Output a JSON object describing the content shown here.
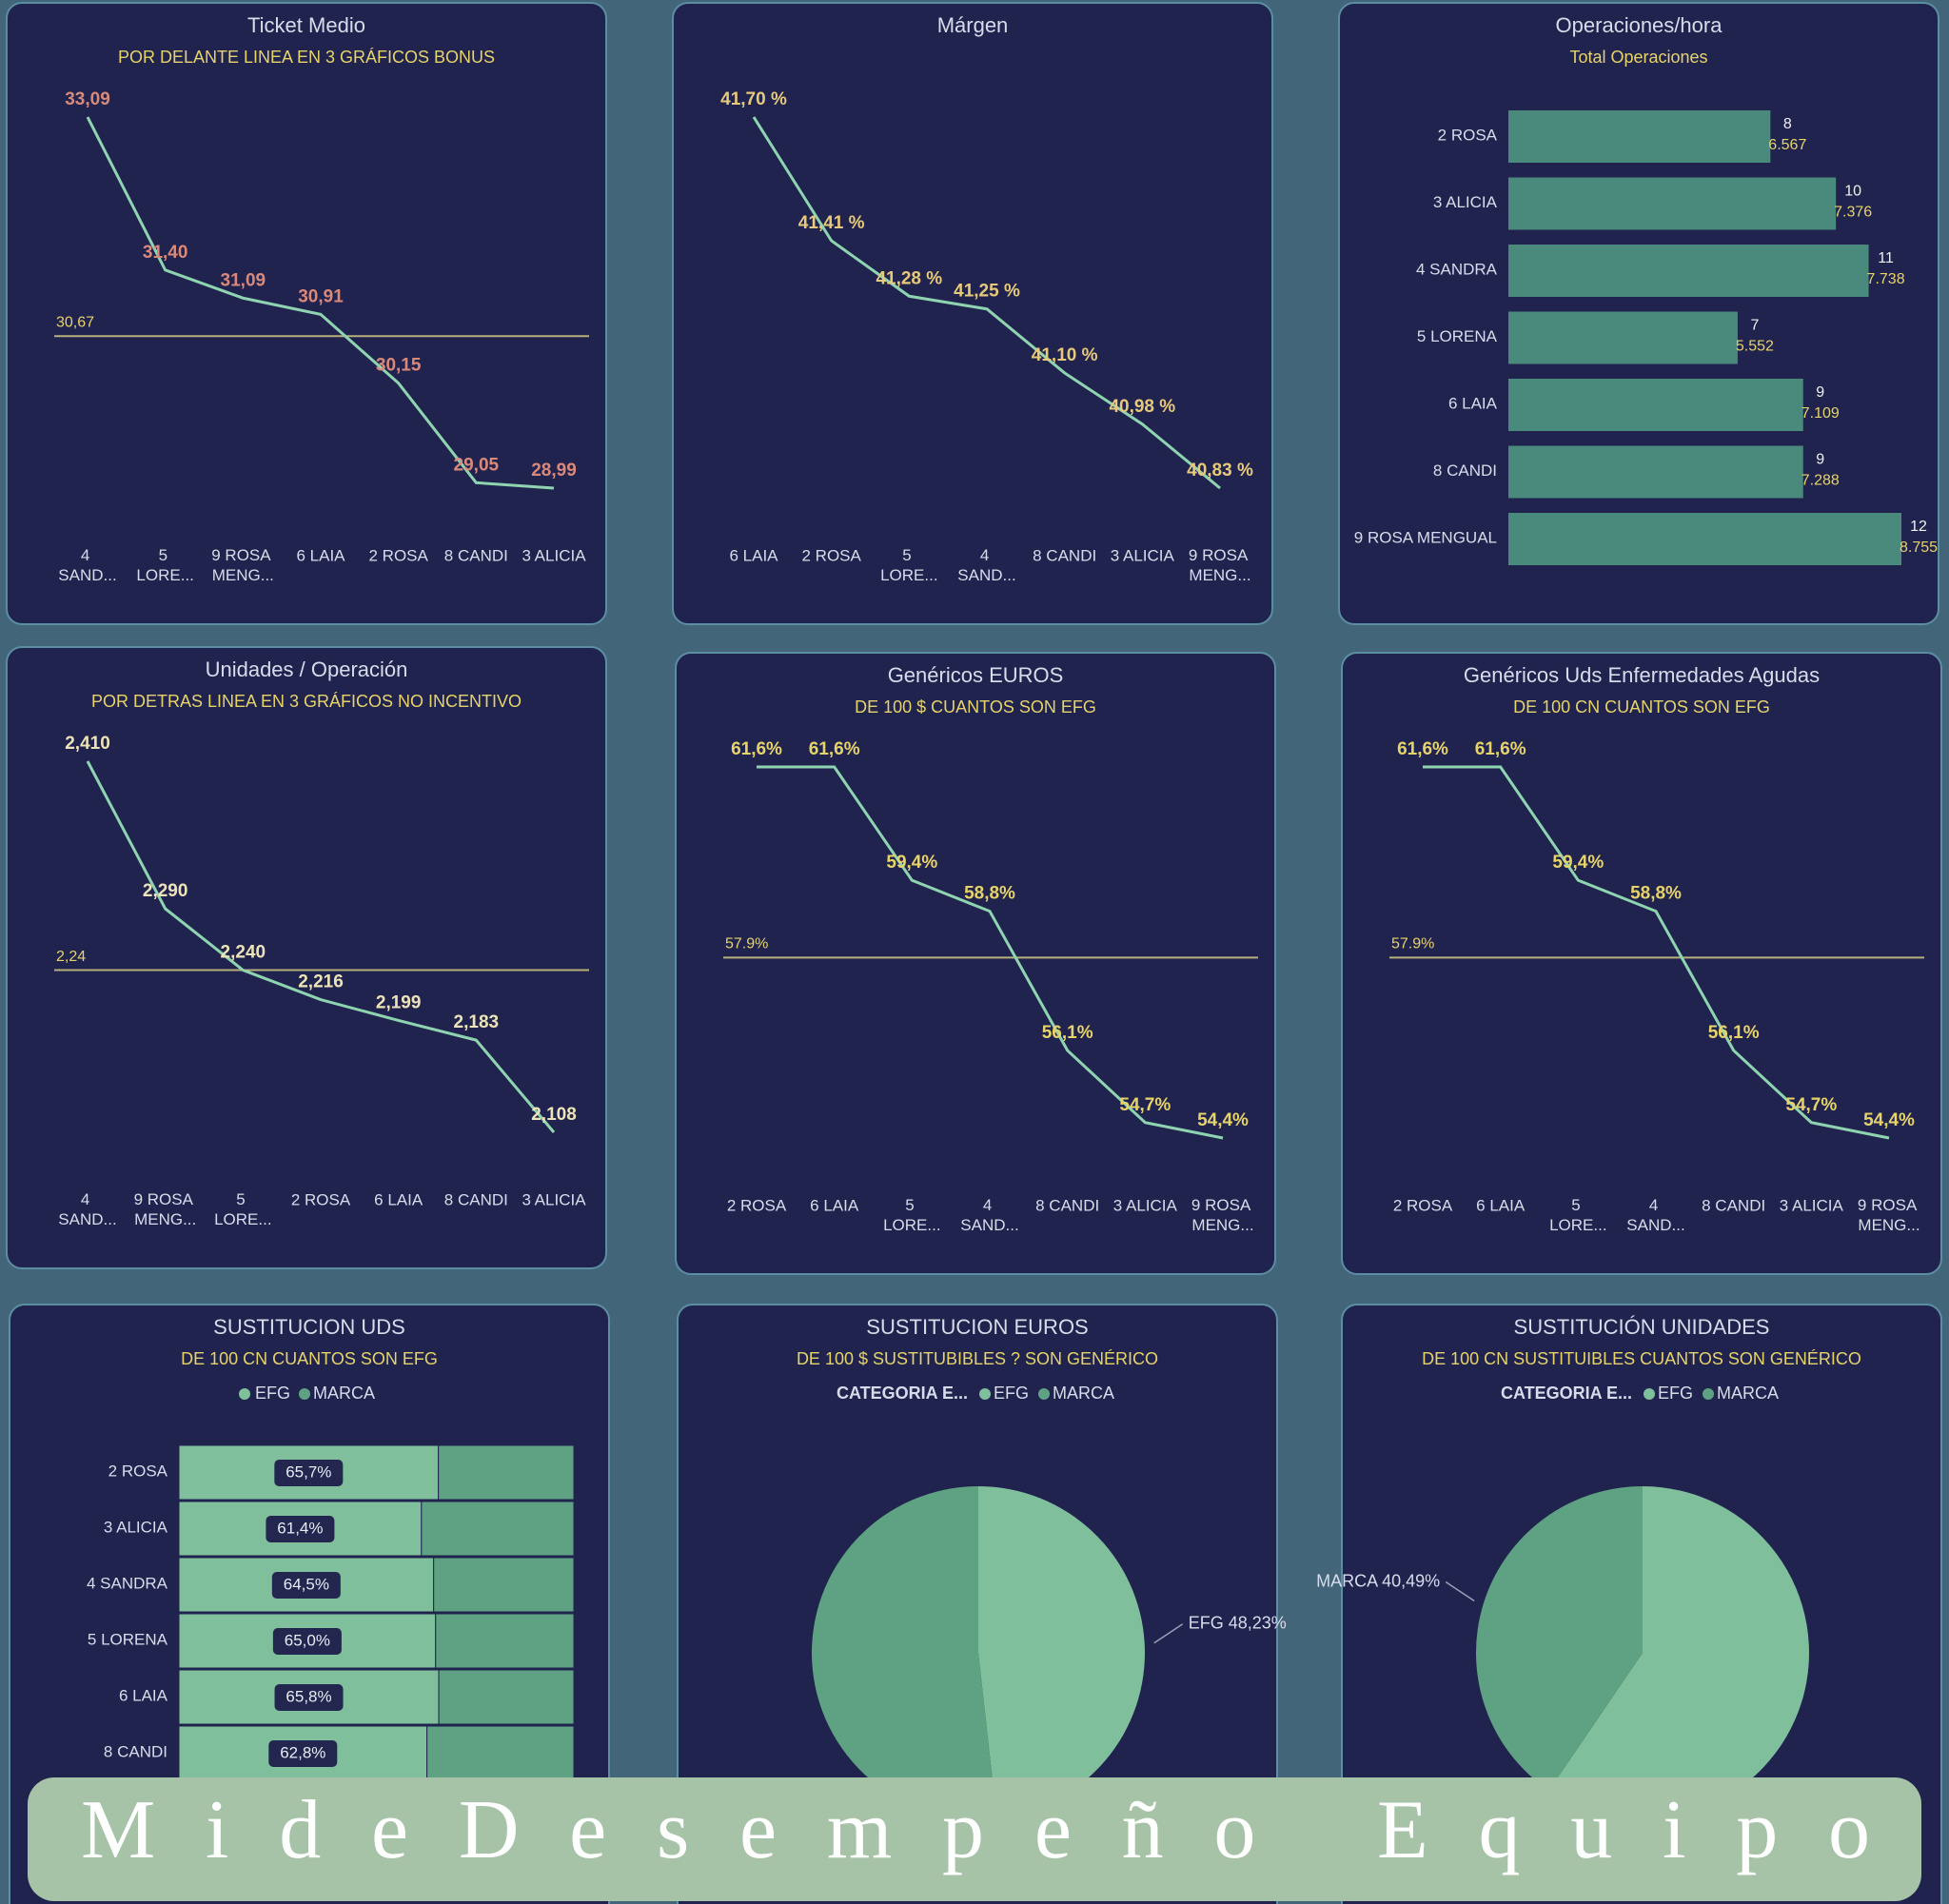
{
  "chart_data": [
    {
      "type": "line",
      "title": "Ticket Medio",
      "subtitle": "POR DELANTE LINEA EN 3 GRÁFICOS BONUS",
      "categories": [
        "4 SAND...",
        "5 LORE...",
        "9 ROSA MENG...",
        "6 LAIA",
        "2 ROSA",
        "8 CANDI",
        "3 ALICIA"
      ],
      "values": [
        33.09,
        31.4,
        31.09,
        30.91,
        30.15,
        29.05,
        28.99
      ],
      "value_labels": [
        "33,09",
        "31,40",
        "31,09",
        "30,91",
        "30,15",
        "29,05",
        "28,99"
      ],
      "reference": {
        "value": 30.67,
        "label": "30,67"
      },
      "color": "#8fd4b0",
      "label_color": "#d9897a"
    },
    {
      "type": "line",
      "title": "Márgen",
      "categories": [
        "6 LAIA",
        "2 ROSA",
        "5 LORE...",
        "4 SAND...",
        "8 CANDI",
        "3 ALICIA",
        "9 ROSA MENG..."
      ],
      "values": [
        41.7,
        41.41,
        41.28,
        41.25,
        41.1,
        40.98,
        40.83
      ],
      "value_labels": [
        "41,70 %",
        "41,41 %",
        "41,28 %",
        "41,25 %",
        "41,10 %",
        "40,98 %",
        "40,83 %"
      ],
      "color": "#8fd4b0",
      "label_color": "#e6c97a"
    },
    {
      "type": "hbar",
      "title": "Operaciones/hora",
      "subtitle": "Total Operaciones",
      "categories": [
        "2 ROSA",
        "3 ALICIA",
        "4 SANDRA",
        "5 LORENA",
        "6 LAIA",
        "8 CANDI",
        "9 ROSA MENGUAL"
      ],
      "values": [
        8,
        10,
        11,
        7,
        9,
        9,
        12
      ],
      "totals": [
        6567,
        7376,
        7738,
        5552,
        7109,
        7288,
        8755
      ],
      "total_labels": [
        "6.567",
        "7.376",
        "7.738",
        "5.552",
        "7.109",
        "7.288",
        "8.755"
      ],
      "color": "#4a8a7c",
      "label_color": "#e6d36a"
    },
    {
      "type": "line",
      "title": "Unidades / Operación",
      "subtitle": "POR DETRAS LINEA EN 3 GRÁFICOS NO INCENTIVO",
      "categories": [
        "4 SAND...",
        "9 ROSA MENG...",
        "5 LORE...",
        "2 ROSA",
        "6 LAIA",
        "8 CANDI",
        "3 ALICIA"
      ],
      "values": [
        2.41,
        2.29,
        2.24,
        2.216,
        2.199,
        2.183,
        2.108
      ],
      "value_labels": [
        "2,410",
        "2,290",
        "2,240",
        "2,216",
        "2,199",
        "2,183",
        "2,108"
      ],
      "reference": {
        "value": 2.24,
        "label": "2,24"
      },
      "color": "#8fd4b0",
      "label_color": "#ece4b8"
    },
    {
      "type": "line",
      "title": "Genéricos EUROS",
      "subtitle": "DE 100 $ CUANTOS SON EFG",
      "categories": [
        "2 ROSA",
        "6 LAIA",
        "5 LORE...",
        "4 SAND...",
        "8 CANDI",
        "3 ALICIA",
        "9 ROSA MENG..."
      ],
      "values": [
        61.6,
        61.6,
        59.4,
        58.8,
        56.1,
        54.7,
        54.4
      ],
      "value_labels": [
        "61,6%",
        "61,6%",
        "59,4%",
        "58,8%",
        "56,1%",
        "54,7%",
        "54,4%"
      ],
      "reference": {
        "value": 57.9,
        "label": "57.9%"
      },
      "color": "#8fd4b0",
      "label_color": "#e6d36a"
    },
    {
      "type": "line",
      "title": "Genéricos Uds Enfermedades Agudas",
      "subtitle": "DE 100 CN CUANTOS SON EFG",
      "categories": [
        "2 ROSA",
        "6 LAIA",
        "5 LORE...",
        "4 SAND...",
        "8 CANDI",
        "3 ALICIA",
        "9 ROSA MENG..."
      ],
      "values": [
        61.6,
        61.6,
        59.4,
        58.8,
        56.1,
        54.7,
        54.4
      ],
      "value_labels": [
        "61,6%",
        "61,6%",
        "59,4%",
        "58,8%",
        "56,1%",
        "54,7%",
        "54,4%"
      ],
      "reference": {
        "value": 57.9,
        "label": "57.9%"
      },
      "color": "#8fd4b0",
      "label_color": "#e6d36a"
    },
    {
      "type": "stacked_hbar",
      "title": "SUSTITUCION UDS",
      "subtitle": "DE 100 CN CUANTOS SON EFG",
      "categories": [
        "2 ROSA",
        "3 ALICIA",
        "4 SANDRA",
        "5 LORENA",
        "6 LAIA",
        "8 CANDI"
      ],
      "series": [
        {
          "name": "EFG",
          "color": "#7fbf9c",
          "values": [
            65.7,
            61.4,
            64.5,
            65.0,
            65.8,
            62.8
          ],
          "value_labels": [
            "65,7%",
            "61,4%",
            "64,5%",
            "65,0%",
            "65,8%",
            "62,8%"
          ]
        },
        {
          "name": "MARCA",
          "color": "#5fa283",
          "values": [
            34.3,
            38.6,
            35.5,
            35.0,
            34.2,
            37.2
          ]
        }
      ]
    },
    {
      "type": "pie",
      "title": "SUSTITUCION EUROS",
      "subtitle": "DE 100 $ SUSTITUBIBLES ? SON GENÉRICO",
      "legend_title": "CATEGORIA E...",
      "categories": [
        "EFG",
        "MARCA"
      ],
      "values": [
        48.23,
        51.77
      ],
      "value_labels": [
        "EFG 48,23%",
        null
      ],
      "colors": [
        "#7fbf9c",
        "#5fa283"
      ]
    },
    {
      "type": "pie",
      "title": "SUSTITUCIÓN UNIDADES",
      "subtitle": "DE 100 CN SUSTITUIBLES  CUANTOS  SON GENÉRICO",
      "legend_title": "CATEGORIA E...",
      "categories": [
        "EFG",
        "MARCA"
      ],
      "values": [
        59.51,
        40.49
      ],
      "value_labels": [
        null,
        "MARCA 40,49%"
      ],
      "colors": [
        "#7fbf9c",
        "#5fa283"
      ]
    }
  ],
  "banner": "MideDesempeño Equipo"
}
